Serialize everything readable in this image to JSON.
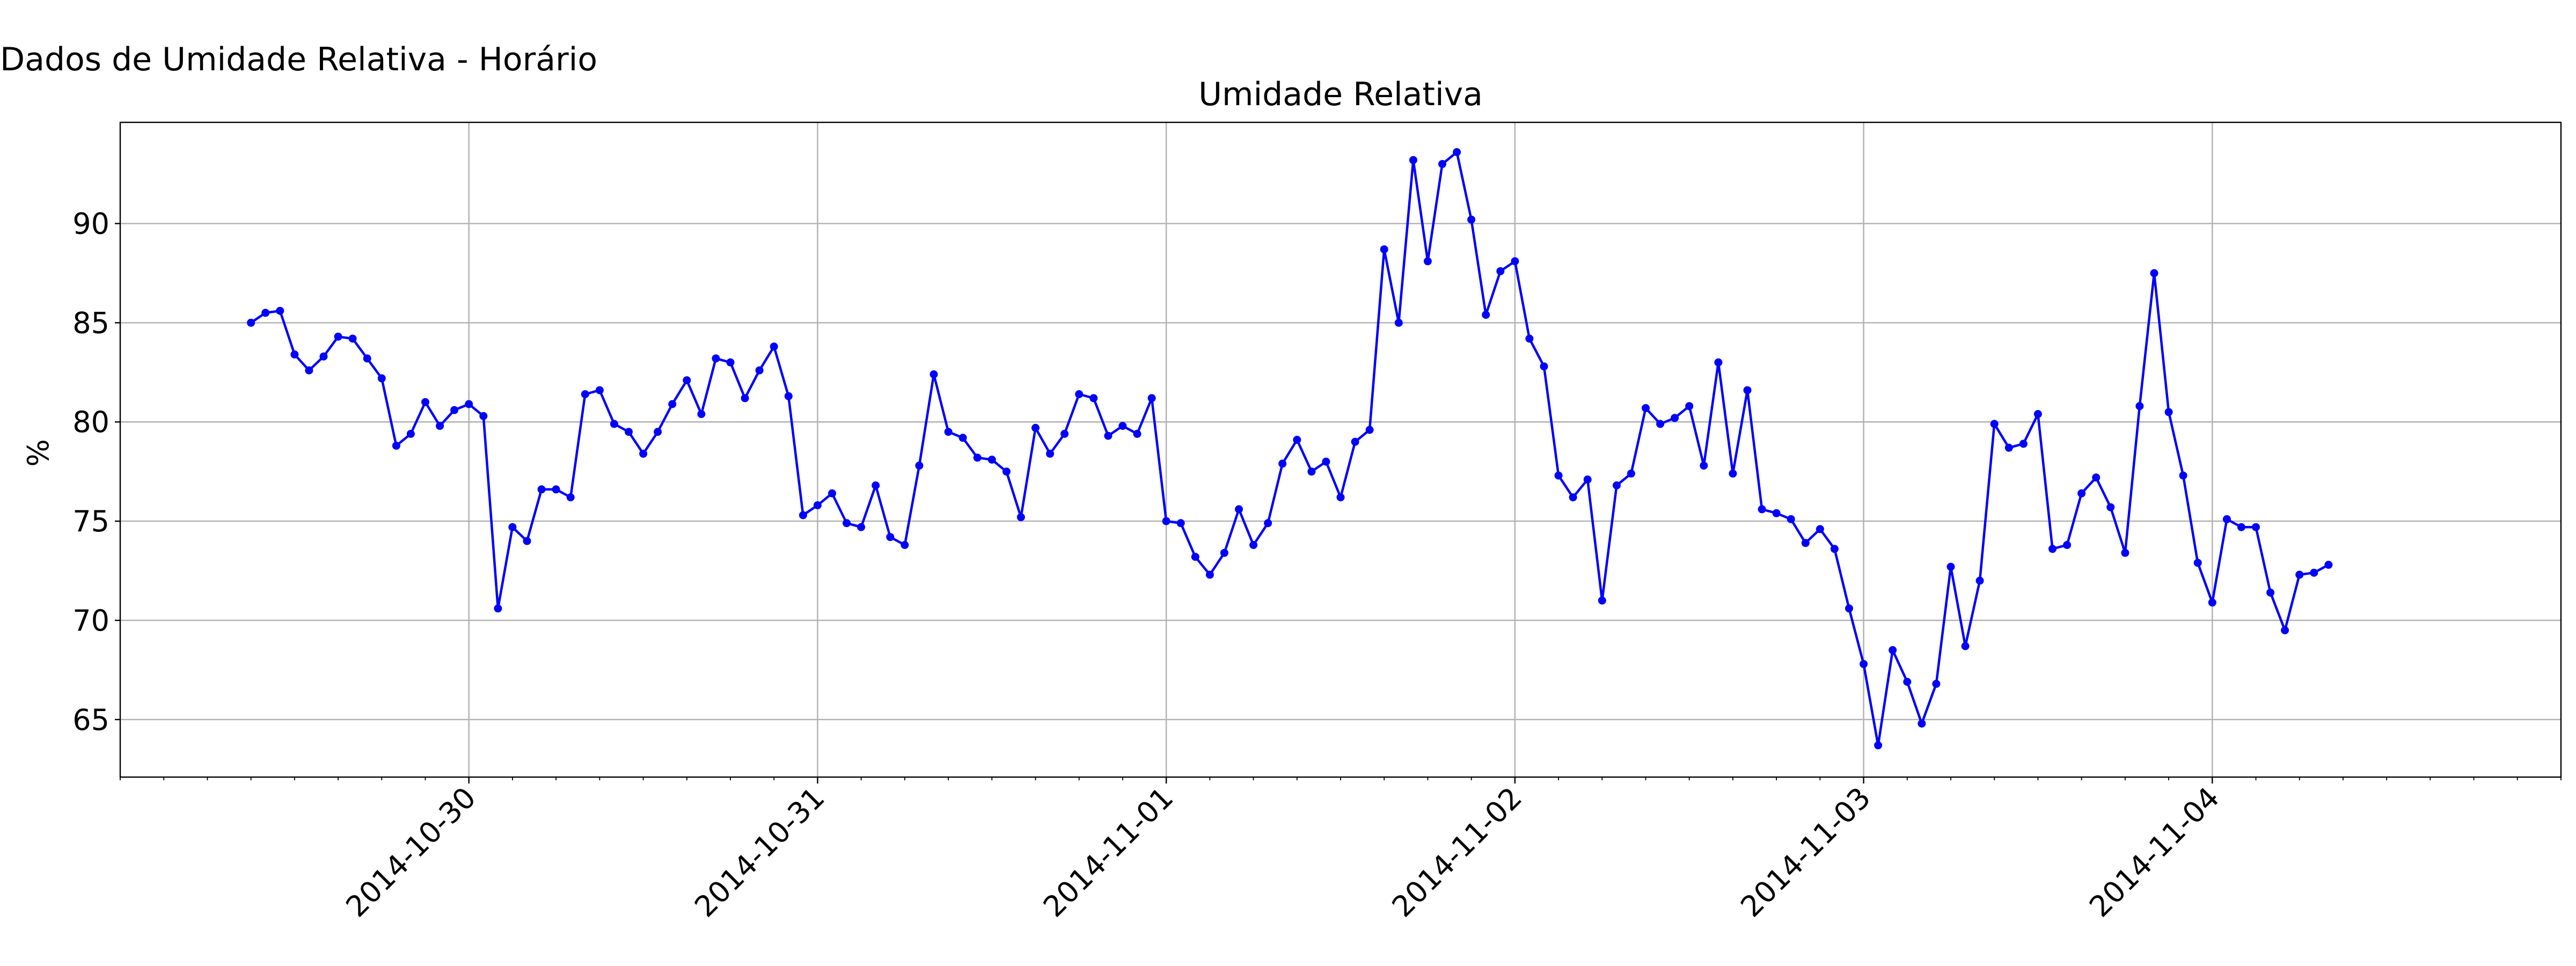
{
  "suptitle": "Dados de Umidade Relativa - Horário",
  "chart_data": {
    "type": "line",
    "title": "Umidade Relativa",
    "xlabel": "",
    "ylabel": "%",
    "x_start": "2014-10-29 09:00",
    "x_step_hours": 1,
    "xlim": [
      "2014-10-29 00:00",
      "2014-11-05 00:00"
    ],
    "ylim": [
      62.1,
      95.1
    ],
    "x_ticks": [
      "2014-10-30",
      "2014-10-31",
      "2014-11-01",
      "2014-11-02",
      "2014-11-03",
      "2014-11-04"
    ],
    "y_ticks": [
      65,
      70,
      75,
      80,
      85,
      90
    ],
    "grid": true,
    "minor_x_ticks_hours": 3,
    "series": [
      {
        "name": "",
        "color": "#0000ff",
        "marker": "circle",
        "values": [
          85.0,
          85.5,
          85.6,
          83.4,
          82.6,
          83.3,
          84.3,
          84.2,
          83.2,
          82.2,
          78.8,
          79.4,
          81.0,
          79.8,
          80.6,
          80.9,
          80.3,
          70.6,
          74.7,
          74.0,
          76.6,
          76.6,
          76.2,
          81.4,
          81.6,
          79.9,
          79.5,
          78.4,
          79.5,
          80.9,
          82.1,
          80.4,
          83.2,
          83.0,
          81.2,
          82.6,
          83.8,
          81.3,
          75.3,
          75.8,
          76.4,
          74.9,
          74.7,
          76.8,
          74.2,
          73.8,
          77.8,
          82.4,
          79.5,
          79.2,
          78.2,
          78.1,
          77.5,
          75.2,
          79.7,
          78.4,
          79.4,
          81.4,
          81.2,
          79.3,
          79.8,
          79.4,
          81.2,
          75.0,
          74.9,
          73.2,
          72.3,
          73.4,
          75.6,
          73.8,
          74.9,
          77.9,
          79.1,
          77.5,
          78.0,
          76.2,
          79.0,
          79.6,
          88.7,
          85.0,
          93.2,
          88.1,
          93.0,
          93.6,
          90.2,
          85.4,
          87.6,
          88.1,
          84.2,
          82.8,
          77.3,
          76.2,
          77.1,
          71.0,
          76.8,
          77.4,
          80.7,
          79.9,
          80.2,
          80.8,
          77.8,
          83.0,
          77.4,
          81.6,
          75.6,
          75.4,
          75.1,
          73.9,
          74.6,
          73.6,
          70.6,
          67.8,
          63.7,
          68.5,
          66.9,
          64.8,
          66.8,
          72.7,
          68.7,
          72.0,
          79.9,
          78.7,
          78.9,
          80.4,
          73.6,
          73.8,
          76.4,
          77.2,
          75.7,
          73.4,
          80.8,
          87.5,
          80.5,
          77.3,
          72.9,
          70.9,
          75.1,
          74.7,
          74.7,
          71.4,
          69.5,
          72.3,
          72.4,
          72.8
        ]
      }
    ]
  }
}
